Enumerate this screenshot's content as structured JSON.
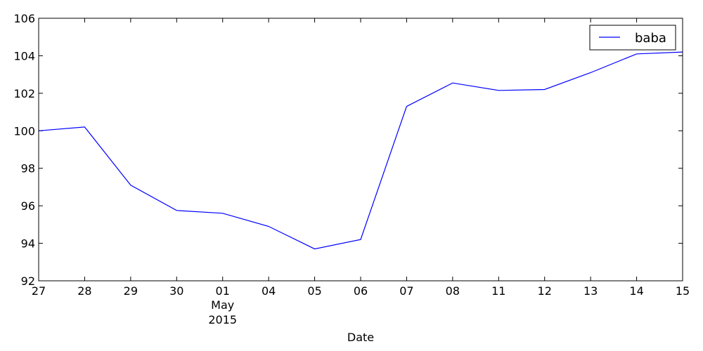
{
  "chart_data": {
    "type": "line",
    "title": "",
    "xlabel": "Date",
    "ylabel": "",
    "ylim": [
      92,
      106
    ],
    "yticks": [
      92,
      94,
      96,
      98,
      100,
      102,
      104,
      106
    ],
    "x": [
      "2015-04-27",
      "2015-04-28",
      "2015-04-29",
      "2015-04-30",
      "2015-05-01",
      "2015-05-04",
      "2015-05-05",
      "2015-05-06",
      "2015-05-07",
      "2015-05-08",
      "2015-05-11",
      "2015-05-12",
      "2015-05-13",
      "2015-05-14",
      "2015-05-15"
    ],
    "xtick_labels": [
      "27",
      "28",
      "29",
      "30",
      "01",
      "04",
      "05",
      "06",
      "07",
      "08",
      "11",
      "12",
      "13",
      "14",
      "15"
    ],
    "xtick_sublabel": {
      "index": 4,
      "month": "May",
      "year": "2015"
    },
    "series": [
      {
        "name": "baba",
        "color": "#0000ff",
        "values": [
          100.0,
          100.2,
          97.1,
          95.75,
          95.6,
          94.9,
          93.7,
          94.2,
          101.3,
          102.55,
          102.15,
          102.2,
          103.1,
          104.1,
          104.2
        ]
      }
    ],
    "legend": "top-right",
    "grid": false
  }
}
